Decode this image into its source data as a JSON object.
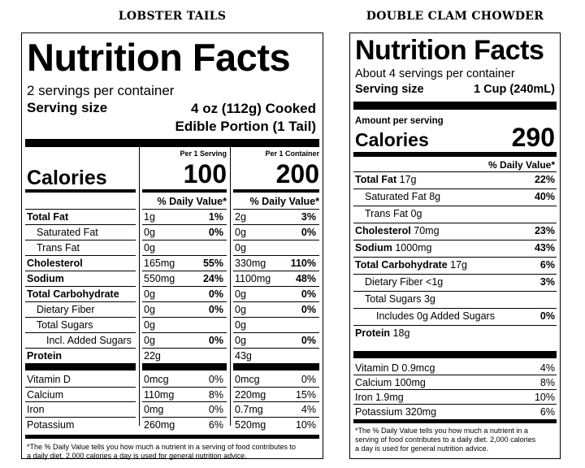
{
  "lobster": {
    "heading": "LOBSTER TAILS",
    "title": "Nutrition Facts",
    "servings_per_container": "2 servings per container",
    "serving_size_label": "Serving size",
    "serving_size_line1": "4 oz (112g) Cooked",
    "serving_size_line2": "Edible Portion (1 Tail)",
    "calories_label": "Calories",
    "col1_header": "Per 1 Serving",
    "col2_header": "Per 1 Container",
    "col1_calories": "100",
    "col2_calories": "200",
    "dv_header": "% Daily Value*",
    "rows": [
      {
        "name": "Total Fat",
        "bold": true,
        "indent": 0,
        "a": "1g",
        "ap": "1%",
        "b": "2g",
        "bp": "3%"
      },
      {
        "name": "Saturated Fat",
        "bold": false,
        "indent": 1,
        "a": "0g",
        "ap": "0%",
        "b": "0g",
        "bp": "0%"
      },
      {
        "name": "Trans Fat",
        "bold": false,
        "indent": 1,
        "a": "0g",
        "ap": "",
        "b": "0g",
        "bp": ""
      },
      {
        "name": "Cholesterol",
        "bold": true,
        "indent": 0,
        "a": "165mg",
        "ap": "55%",
        "b": "330mg",
        "bp": "110%"
      },
      {
        "name": "Sodium",
        "bold": true,
        "indent": 0,
        "a": "550mg",
        "ap": "24%",
        "b": "1100mg",
        "bp": "48%"
      },
      {
        "name": "Total Carbohydrate",
        "bold": true,
        "indent": 0,
        "a": "0g",
        "ap": "0%",
        "b": "0g",
        "bp": "0%"
      },
      {
        "name": "Dietary Fiber",
        "bold": false,
        "indent": 1,
        "a": "0g",
        "ap": "0%",
        "b": "0g",
        "bp": "0%"
      },
      {
        "name": "Total Sugars",
        "bold": false,
        "indent": 1,
        "a": "0g",
        "ap": "",
        "b": "0g",
        "bp": ""
      },
      {
        "name": "Incl. Added Sugars",
        "bold": false,
        "indent": 2,
        "a": "0g",
        "ap": "0%",
        "b": "0g",
        "bp": "0%"
      },
      {
        "name": "Protein",
        "bold": true,
        "indent": 0,
        "a": "22g",
        "ap": "",
        "b": "43g",
        "bp": ""
      }
    ],
    "vitamins": [
      {
        "name": "Vitamin D",
        "a": "0mcg",
        "ap": "0%",
        "b": "0mcg",
        "bp": "0%"
      },
      {
        "name": "Calcium",
        "a": "110mg",
        "ap": "8%",
        "b": "220mg",
        "bp": "15%"
      },
      {
        "name": "Iron",
        "a": "0mg",
        "ap": "0%",
        "b": "0.7mg",
        "bp": "4%"
      },
      {
        "name": "Potassium",
        "a": "260mg",
        "ap": "6%",
        "b": "520mg",
        "bp": "10%"
      }
    ],
    "footnote_line1": "*The % Daily Value tells you how much a nutrient in a serving of food contributes to",
    "footnote_line2": "a daily diet. 2,000 calories a day is used for general nutrition advice."
  },
  "clam": {
    "heading": "DOUBLE CLAM CHOWDER",
    "title": "Nutrition Facts",
    "servings_per_container": "About 4 servings per container",
    "serving_size_label": "Serving size",
    "serving_size_value": "1 Cup (240mL)",
    "amount_per_serving": "Amount per serving",
    "calories_label": "Calories",
    "calories_value": "290",
    "dv_header": "% Daily Value*",
    "rows": [
      {
        "name": "Total Fat",
        "amt": "17g",
        "pct": "22%",
        "indent": 0
      },
      {
        "name": "Saturated Fat",
        "amt": "8g",
        "pct": "40%",
        "indent": 1
      },
      {
        "name": "Trans Fat",
        "amt": "0g",
        "pct": "",
        "indent": 1
      },
      {
        "name": "Cholesterol",
        "amt": "70mg",
        "pct": "23%",
        "indent": 0
      },
      {
        "name": "Sodium",
        "amt": "1000mg",
        "pct": "43%",
        "indent": 0
      },
      {
        "name": "Total Carbohydrate",
        "amt": "17g",
        "pct": "6%",
        "indent": 0
      },
      {
        "name": "Dietary Fiber",
        "amt": "<1g",
        "pct": "3%",
        "indent": 1
      },
      {
        "name": "Total Sugars",
        "amt": "3g",
        "pct": "",
        "indent": 1
      },
      {
        "name": "Includes 0g Added Sugars",
        "amt": "",
        "pct": "0%",
        "indent": 2
      },
      {
        "name": "Protein",
        "amt": "18g",
        "pct": "",
        "indent": 0
      }
    ],
    "vitamins": [
      {
        "name": "Vitamin D 0.9mcg",
        "pct": "4%"
      },
      {
        "name": "Calcium 100mg",
        "pct": "8%"
      },
      {
        "name": "Iron 1.9mg",
        "pct": "10%"
      },
      {
        "name": "Potassium 320mg",
        "pct": "6%"
      }
    ],
    "footnote_line1": "*The % Daily Value tells you how much a nutrient in a",
    "footnote_line2": "serving of food contributes to a daily diet. 2,000 calories",
    "footnote_line3": "a day is used for general nutrition advice."
  }
}
